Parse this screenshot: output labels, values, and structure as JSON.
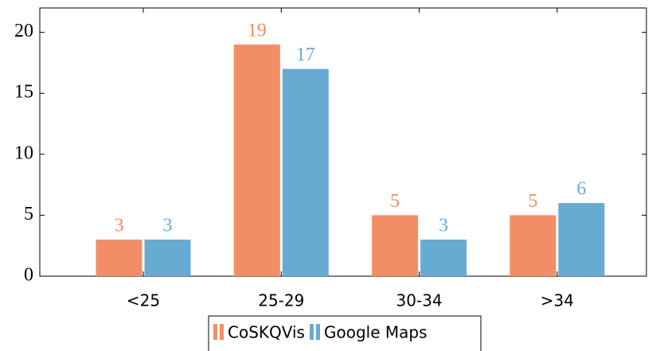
{
  "chart_data": {
    "type": "bar",
    "categories": [
      "<25",
      "25-29",
      "30-34",
      ">34"
    ],
    "series": [
      {
        "name": "CoSKQVis",
        "color": "#f28e65",
        "values": [
          3,
          19,
          5,
          5
        ]
      },
      {
        "name": "Google Maps",
        "color": "#68abd2",
        "values": [
          3,
          17,
          3,
          6
        ]
      }
    ],
    "ylim": [
      0,
      22
    ],
    "yticks": [
      0,
      5,
      10,
      15,
      20
    ],
    "legend": "bottom"
  }
}
